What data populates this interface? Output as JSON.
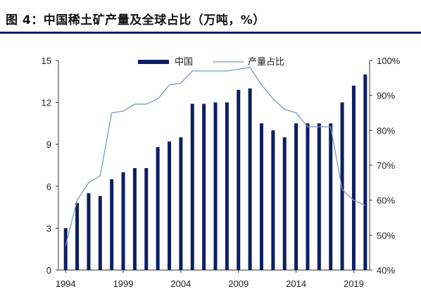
{
  "header": {
    "title": "图 4：中国稀土矿产量及全球占比（万吨，%）"
  },
  "colors": {
    "bar": "#0c1f63",
    "line": "#8096b8",
    "title_rule": "#0c1f63"
  },
  "chart_data": {
    "type": "bar",
    "title": "",
    "xlabel": "",
    "ylabel": "",
    "legend_position": "top-center",
    "x": [
      1994,
      1995,
      1996,
      1997,
      1998,
      1999,
      2000,
      2001,
      2002,
      2003,
      2004,
      2005,
      2006,
      2007,
      2008,
      2009,
      2010,
      2011,
      2012,
      2013,
      2014,
      2015,
      2016,
      2017,
      2018,
      2019,
      2020
    ],
    "x_tick_labels": [
      "1994",
      "1999",
      "2004",
      "2009",
      "2014",
      "2019"
    ],
    "x_tick_values": [
      1994,
      1999,
      2004,
      2009,
      2014,
      2019
    ],
    "y_left": {
      "lim": [
        0,
        15
      ],
      "ticks": [
        "0",
        "3",
        "6",
        "9",
        "12",
        "15"
      ],
      "tick_values": [
        0,
        3,
        6,
        9,
        12,
        15
      ]
    },
    "y_right": {
      "lim": [
        40,
        100
      ],
      "ticks": [
        "40%",
        "50%",
        "60%",
        "70%",
        "80%",
        "90%",
        "100%"
      ],
      "tick_values": [
        40,
        50,
        60,
        70,
        80,
        90,
        100
      ]
    },
    "series": [
      {
        "name": "中国",
        "type": "bar",
        "axis": "left",
        "values": [
          3.0,
          4.8,
          5.5,
          5.3,
          6.5,
          7.0,
          7.3,
          7.3,
          8.8,
          9.2,
          9.5,
          11.9,
          11.9,
          12.0,
          12.0,
          12.9,
          13.0,
          10.5,
          10.0,
          9.5,
          10.5,
          10.5,
          10.5,
          10.5,
          12.0,
          13.2,
          14.0
        ]
      },
      {
        "name": "产量占比",
        "type": "line",
        "axis": "right",
        "x": [
          1994,
          1995,
          1996,
          1997,
          1998,
          1999,
          2000,
          2001,
          2002,
          2003,
          2004,
          2005,
          2006,
          2007,
          2008,
          2009,
          2010,
          2011,
          2012,
          2013,
          2014,
          2015,
          2016,
          2017,
          2018,
          2019,
          2020
        ],
        "values": [
          47,
          60,
          65,
          67,
          85,
          85.5,
          87.5,
          87.5,
          89,
          93,
          93.5,
          97,
          97,
          97,
          97,
          97.5,
          98,
          93,
          89,
          86,
          85,
          81,
          81,
          81,
          63,
          60,
          58.5
        ]
      }
    ]
  }
}
